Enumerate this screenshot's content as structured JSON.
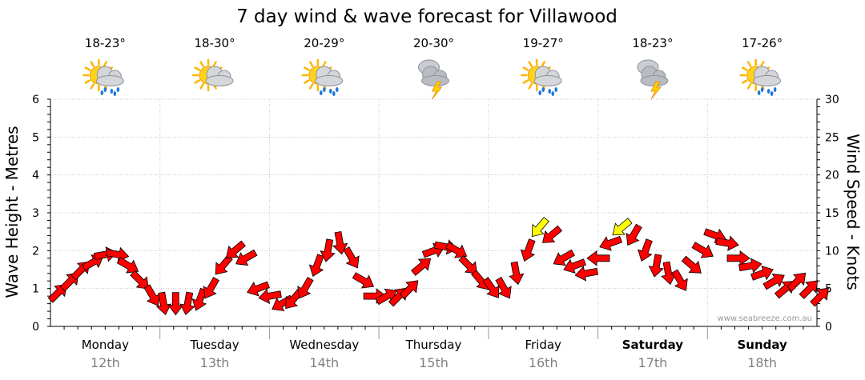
{
  "chart_data": {
    "type": "line",
    "title": "7 day wind & wave forecast for Villawood",
    "ylabel_left": "Wave Height - Metres",
    "ylabel_right": "Wind Speed - Knots",
    "ylim_left": [
      0,
      6
    ],
    "ylim_right": [
      0,
      30
    ],
    "yticks_left": [
      "0",
      "1",
      "2",
      "3",
      "4",
      "5",
      "6"
    ],
    "yticks_right": [
      "0",
      "5",
      "10",
      "15",
      "20",
      "25",
      "30"
    ],
    "grid": true,
    "watermark": "www.seabreeze.com.au",
    "days": [
      {
        "name": "Monday",
        "date": "12th",
        "temp": "18-23°",
        "icon": "sun-cloud-rain-icon",
        "bold": false
      },
      {
        "name": "Tuesday",
        "date": "13th",
        "temp": "18-30°",
        "icon": "sun-cloud-icon",
        "bold": false
      },
      {
        "name": "Wednesday",
        "date": "14th",
        "temp": "20-29°",
        "icon": "sun-cloud-rain-icon",
        "bold": false
      },
      {
        "name": "Thursday",
        "date": "15th",
        "temp": "20-30°",
        "icon": "storm-cloud-icon",
        "bold": false
      },
      {
        "name": "Friday",
        "date": "16th",
        "temp": "19-27°",
        "icon": "sun-cloud-rain-icon",
        "bold": false
      },
      {
        "name": "Saturday",
        "date": "17th",
        "temp": "18-23°",
        "icon": "storm-cloud-icon",
        "bold": true
      },
      {
        "name": "Sunday",
        "date": "18th",
        "temp": "17-26°",
        "icon": "sun-cloud-rain-icon",
        "bold": true
      }
    ],
    "wind_series": {
      "name": "Wind speed (knots)",
      "x_days": [
        0.0,
        0.11,
        0.21,
        0.32,
        0.43,
        0.54,
        0.64,
        0.75,
        0.86,
        0.96,
        1.07,
        1.18,
        1.29,
        1.39,
        1.5,
        1.61,
        1.71,
        1.82,
        1.93,
        2.04,
        2.14,
        2.25,
        2.36,
        2.46,
        2.57,
        2.68,
        2.79,
        2.89,
        3.0,
        3.11,
        3.21,
        3.32,
        3.43,
        3.54,
        3.64,
        3.75,
        3.86,
        3.96,
        4.07,
        4.18,
        4.29,
        4.39,
        4.5,
        4.61,
        4.71,
        4.82,
        4.93,
        5.04,
        5.14,
        5.25,
        5.36,
        5.46,
        5.57,
        5.68,
        5.79,
        5.89,
        6.0,
        6.11,
        6.21,
        6.32,
        6.43,
        6.54,
        6.64,
        6.75,
        6.86,
        6.96
      ],
      "knots": [
        4.5,
        6,
        7.5,
        8.5,
        9.5,
        9.5,
        8,
        6,
        4,
        3,
        3,
        3,
        3.5,
        5,
        8,
        10,
        9,
        5,
        4,
        3,
        3.5,
        5,
        8,
        10,
        11,
        9,
        6,
        4,
        4,
        4,
        5,
        8,
        10,
        10.5,
        10,
        8,
        6,
        5,
        5,
        7,
        10,
        13,
        12,
        9,
        8,
        7,
        9,
        11,
        13,
        12,
        10,
        8,
        7,
        6,
        8,
        10,
        12,
        11,
        9,
        8,
        7,
        6,
        5,
        6,
        5,
        4
      ],
      "direction_deg": [
        45,
        45,
        45,
        60,
        80,
        100,
        120,
        135,
        150,
        170,
        180,
        190,
        200,
        210,
        220,
        230,
        240,
        250,
        260,
        240,
        220,
        210,
        200,
        190,
        170,
        150,
        120,
        90,
        60,
        45,
        45,
        50,
        70,
        100,
        120,
        135,
        140,
        145,
        150,
        170,
        200,
        220,
        230,
        240,
        250,
        260,
        270,
        250,
        230,
        210,
        200,
        190,
        170,
        150,
        130,
        120,
        110,
        100,
        90,
        80,
        70,
        60,
        50,
        45,
        45,
        45
      ]
    },
    "colors": {
      "strong": "#ff0000",
      "gusty": "#ffff00",
      "grid": "#c8c8c8",
      "axis": "#000000",
      "date": "#808080"
    }
  }
}
